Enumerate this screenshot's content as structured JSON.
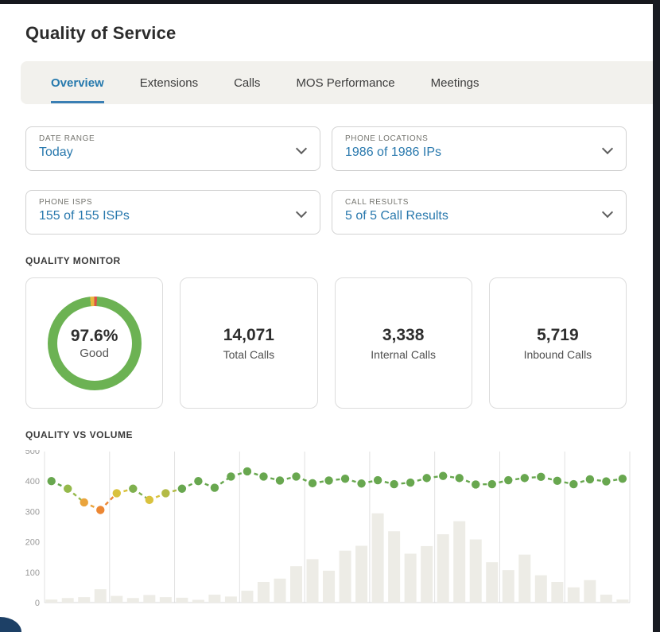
{
  "page": {
    "title": "Quality of Service"
  },
  "tabs": [
    {
      "label": "Overview",
      "active": true
    },
    {
      "label": "Extensions",
      "active": false
    },
    {
      "label": "Calls",
      "active": false
    },
    {
      "label": "MOS Performance",
      "active": false
    },
    {
      "label": "Meetings",
      "active": false
    }
  ],
  "filters": [
    {
      "label": "DATE RANGE",
      "value": "Today"
    },
    {
      "label": "PHONE LOCATIONS",
      "value": "1986 of 1986 IPs"
    },
    {
      "label": "PHONE ISPS",
      "value": "155 of 155 ISPs"
    },
    {
      "label": "CALL RESULTS",
      "value": "5 of 5 Call Results"
    }
  ],
  "quality_monitor": {
    "section_title": "QUALITY MONITOR",
    "donut": {
      "percent": "97.6%",
      "label": "Good",
      "good_value": 97.6,
      "moderate_value": 1.4,
      "poor_value": 1.0,
      "good_color": "#6cb253",
      "moderate_color": "#e9b83e",
      "poor_color": "#dc5247"
    },
    "stats": [
      {
        "value": "14,071",
        "label": "Total Calls"
      },
      {
        "value": "3,338",
        "label": "Internal Calls"
      },
      {
        "value": "5,719",
        "label": "Inbound Calls"
      }
    ]
  },
  "chart_data": {
    "type": "combo",
    "title": "QUALITY VS VOLUME",
    "xlabel": "",
    "ylabel": "",
    "ylim": [
      0,
      500
    ],
    "yticks": [
      0,
      100,
      200,
      300,
      400,
      500
    ],
    "x_labels_visible": false,
    "grid": "vertical",
    "gridline_count": 10,
    "legend": "none",
    "series": [
      {
        "name": "quality",
        "type": "line",
        "style": "dashed",
        "values": [
          400,
          375,
          330,
          305,
          360,
          375,
          338,
          360,
          375,
          400,
          378,
          415,
          432,
          415,
          402,
          415,
          393,
          402,
          408,
          392,
          403,
          390,
          395,
          410,
          417,
          410,
          389,
          390,
          403,
          410,
          414,
          401,
          390,
          406,
          399,
          408
        ],
        "point_colors": [
          "#68a74f",
          "#95b94b",
          "#eaa43c",
          "#ec8733",
          "#d9c23e",
          "#7fb04e",
          "#d9c23e",
          "#b3ba46",
          "#68a74f",
          "#68a74f",
          "#68a74f",
          "#68a74f",
          "#68a74f",
          "#68a74f",
          "#68a74f",
          "#68a74f",
          "#68a74f",
          "#68a74f",
          "#68a74f",
          "#68a74f",
          "#68a74f",
          "#68a74f",
          "#68a74f",
          "#68a74f",
          "#68a74f",
          "#68a74f",
          "#68a74f",
          "#68a74f",
          "#68a74f",
          "#68a74f",
          "#68a74f",
          "#68a74f",
          "#68a74f",
          "#68a74f",
          "#68a74f",
          "#68a74f"
        ]
      },
      {
        "name": "volume",
        "type": "bar",
        "color": "#edece6",
        "values": [
          10,
          15,
          18,
          44,
          22,
          15,
          25,
          18,
          16,
          9,
          26,
          20,
          39,
          68,
          79,
          120,
          143,
          105,
          171,
          187,
          294,
          235,
          161,
          186,
          225,
          268,
          208,
          133,
          107,
          158,
          90,
          68,
          50,
          74,
          26,
          10
        ]
      }
    ],
    "colors": {
      "grid": "#e1e1e1",
      "tick_text": "#9a9a9a"
    }
  },
  "theme": {
    "accent_blue": "#2878ad",
    "tab_bg": "#f2f1ed",
    "card_border": "#dcdcdc"
  }
}
